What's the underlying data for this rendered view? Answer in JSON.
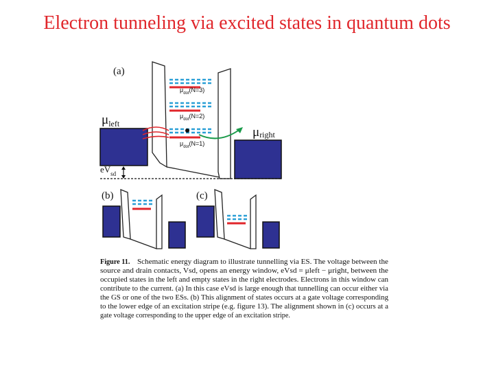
{
  "title": "Electron tunneling via excited states in quantum dots",
  "figure": {
    "panel_a": "(a)",
    "panel_b": "(b)",
    "panel_c": "(c)",
    "mu_left": {
      "symbol": "μ",
      "sub": "left"
    },
    "mu_right": {
      "symbol": "μ",
      "sub": "right"
    },
    "eV_sd": {
      "symbol": "eV",
      "sub": "sd"
    },
    "levels": [
      {
        "symbol": "μ",
        "sub": "dot",
        "text": "(N=3)"
      },
      {
        "symbol": "μ",
        "sub": "dot",
        "text": "(N=2)"
      },
      {
        "symbol": "μ",
        "sub": "dot",
        "text": "(N=1)"
      }
    ]
  },
  "caption": {
    "label": "Figure 11.",
    "lines": [
      "Schematic energy diagram to illustrate tunnelling via ES. The voltage between the",
      "source and drain contacts, Vsd, opens an energy window, eVsd = μleft − μright, between the",
      "occupied states in the left and empty states in the right electrodes. Electrons in this window can",
      "contribute to the current. (a) In this case eVsd is large enough that tunnelling can occur either via",
      "the GS or one of the two ESs. (b) This alignment of states occurs at a gate voltage corresponding",
      "to the lower edge of an excitation stripe (e.g. figure 13). The alignment shown in (c) occurs at a",
      "gate voltage corresponding to the upper edge of an excitation stripe."
    ]
  }
}
